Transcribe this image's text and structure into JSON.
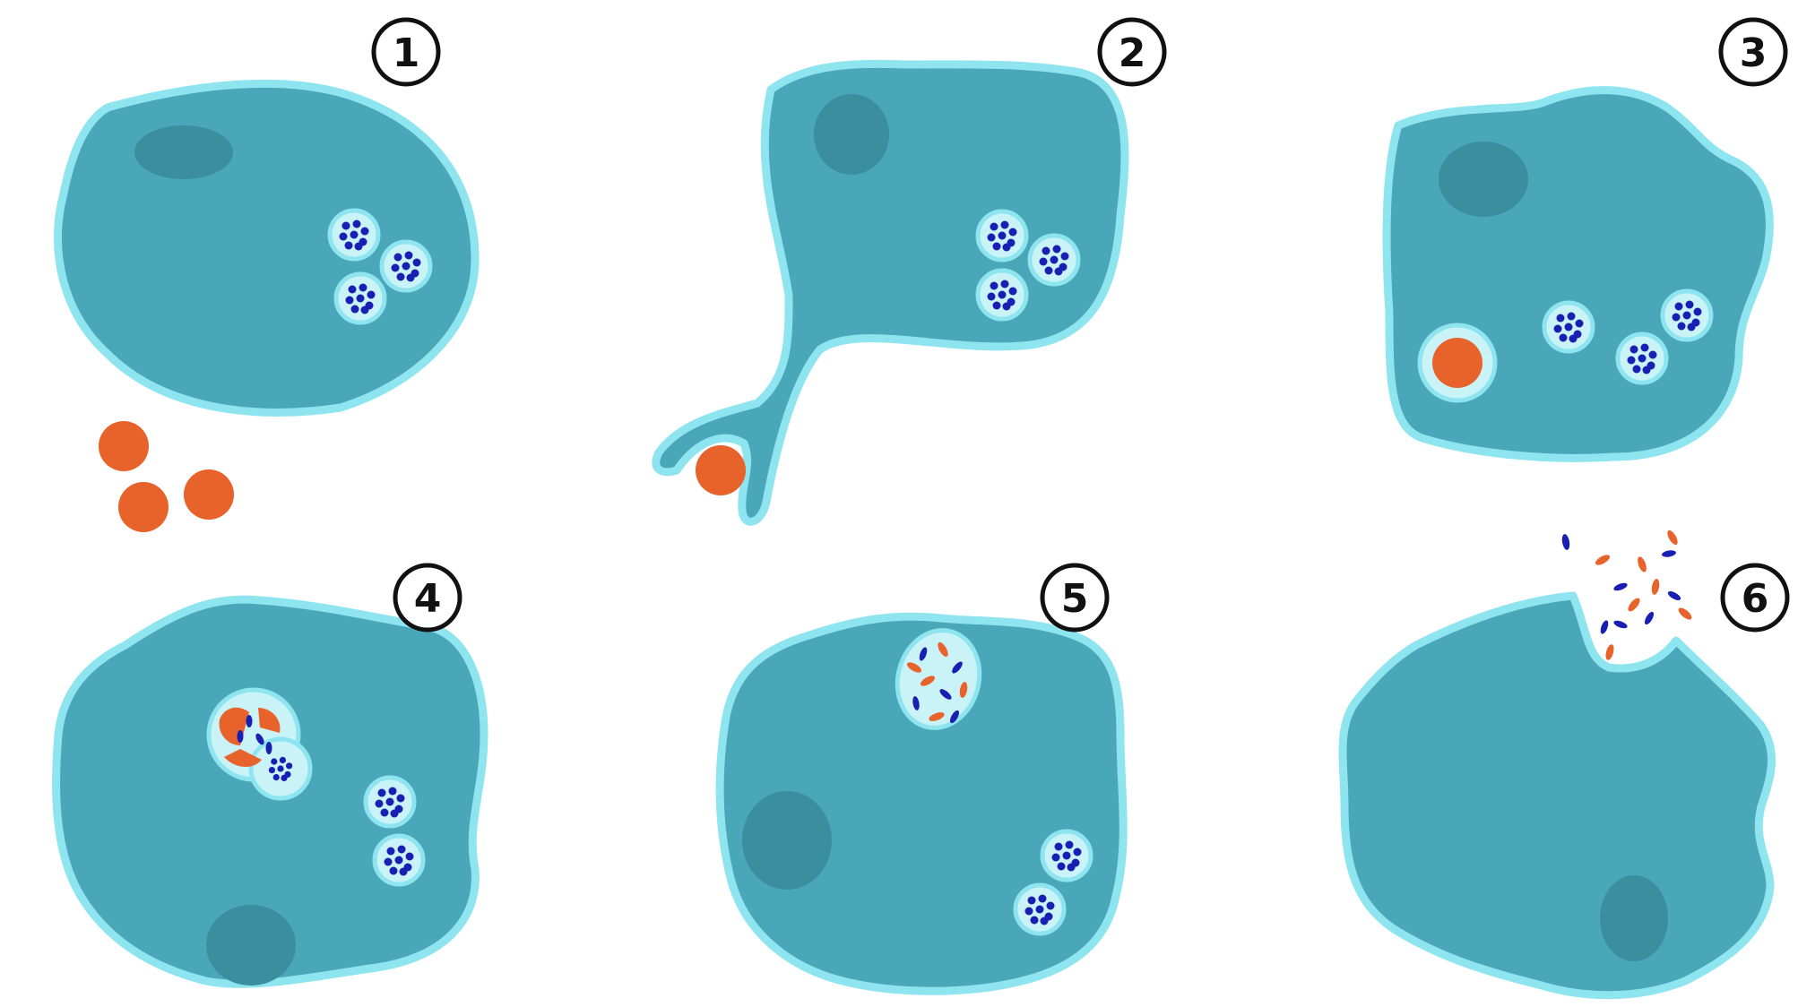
{
  "diagram": {
    "colors": {
      "background": "#ffffff",
      "cytoplasm": "#4aa6b9",
      "membrane": "#8fe5ef",
      "nucleus": "#3b8e9e",
      "vesicle_fill": "#c9f3f7",
      "vesicle_rim": "#8fe5ef",
      "granule": "#1a1fb4",
      "bacterium": "#e8622c",
      "step_circle": "#111111"
    },
    "steps": [
      {
        "label": "1"
      },
      {
        "label": "2"
      },
      {
        "label": "3"
      },
      {
        "label": "4"
      },
      {
        "label": "5"
      },
      {
        "label": "6"
      }
    ]
  }
}
